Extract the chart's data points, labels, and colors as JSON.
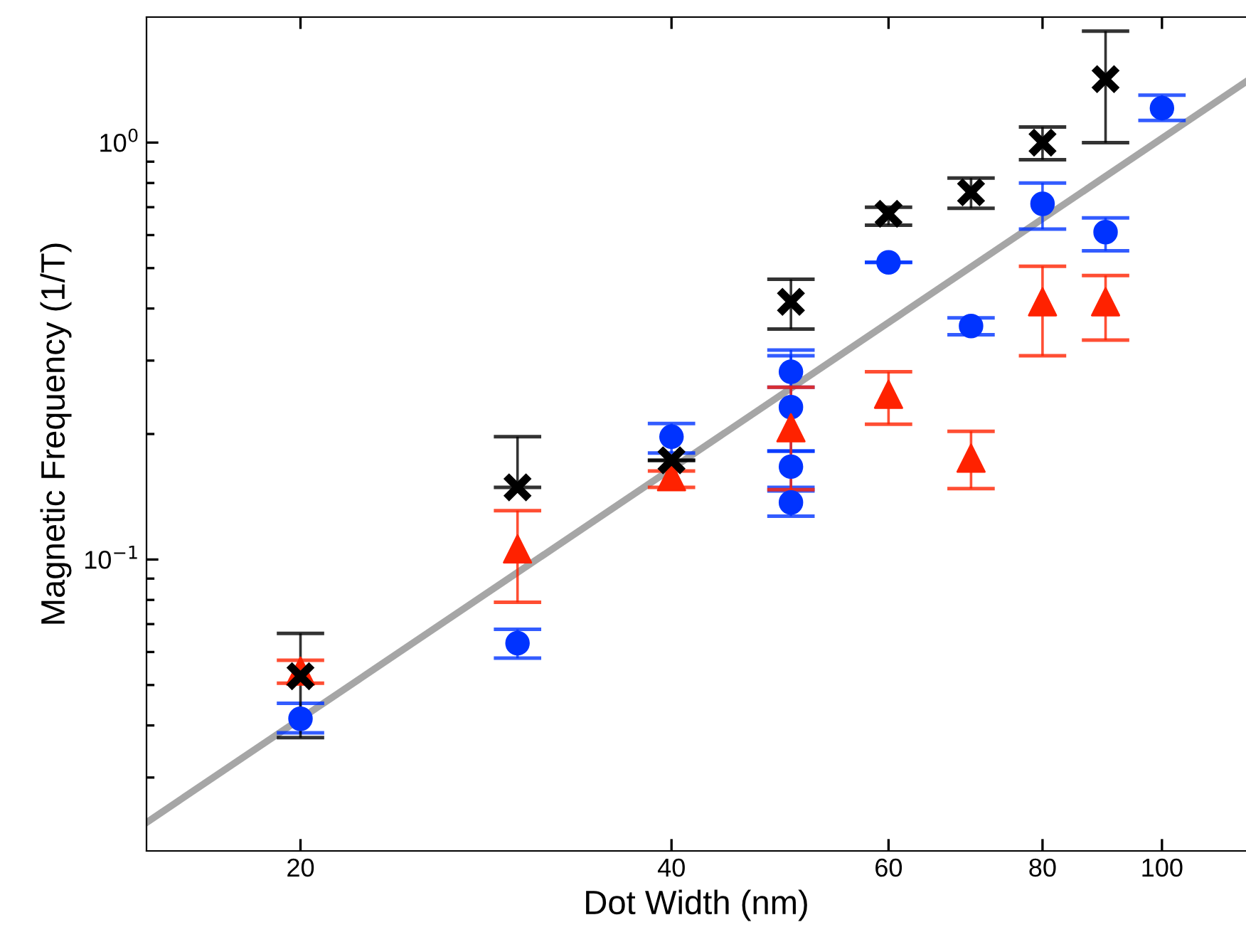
{
  "chart_data": {
    "type": "scatter",
    "xlabel": "Dot Width (nm)",
    "ylabel": "Magnetic Frequency (1/T)",
    "log": "xy",
    "grid": false,
    "xlim": [
      15,
      117
    ],
    "xticks": [
      20,
      40,
      60,
      80,
      100
    ],
    "ylim": [
      0.02,
      2
    ],
    "yticks": [
      {
        "value": 0.03,
        "label": null
      },
      {
        "value": 0.04,
        "label": null
      },
      {
        "value": 0.05,
        "label": null
      },
      {
        "value": 0.06,
        "label": null
      },
      {
        "value": 0.07,
        "label": null
      },
      {
        "value": 0.08,
        "label": null
      },
      {
        "value": 0.09,
        "label": null
      },
      {
        "value": 0.1,
        "label": "10$^{−1}$"
      },
      {
        "value": 0.2,
        "label": null
      },
      {
        "value": 0.3,
        "label": null
      },
      {
        "value": 0.4,
        "label": null
      },
      {
        "value": 0.5,
        "label": null
      },
      {
        "value": 0.6,
        "label": null
      },
      {
        "value": 0.7,
        "label": null
      },
      {
        "value": 0.8,
        "label": null
      },
      {
        "value": 0.9,
        "label": null
      },
      {
        "value": 1,
        "label": "10$^{0}$"
      }
    ],
    "series": [
      {
        "type": "line",
        "color": "#a6a6a6",
        "x": [
          15,
          117
        ],
        "values": [
          0.0234,
          1.4
        ],
        "marker": "none",
        "line_style": "solid"
      },
      {
        "color": "#0033ff",
        "marker": "circle",
        "x": [
          20,
          30,
          40,
          50,
          50,
          50,
          50,
          60,
          70,
          80,
          90,
          100
        ],
        "values": [
          0.0415,
          0.063,
          0.197,
          0.282,
          0.232,
          0.167,
          0.137,
          0.516,
          0.363,
          0.713,
          0.61,
          1.21
        ],
        "errors": [
          [
            0.0384,
            0.0452
          ],
          [
            0.058,
            0.068
          ],
          [
            0.18,
            0.212
          ],
          [
            0.259,
            0.318
          ],
          [
            0.182,
            0.308
          ],
          [
            0.149,
            0.182
          ],
          [
            0.127,
            0.146
          ],
          null,
          [
            0.346,
            0.38
          ],
          [
            0.62,
            0.8
          ],
          [
            0.55,
            0.66
          ],
          [
            1.13,
            1.3
          ]
        ]
      },
      {
        "color": "#ff2200",
        "marker": "triangle",
        "x": [
          20,
          30,
          40,
          50,
          60,
          70,
          80,
          90
        ],
        "values": [
          0.054,
          0.106,
          0.158,
          0.207,
          0.249,
          0.175,
          0.415,
          0.415
        ],
        "errors": [
          [
            0.0505,
            0.0573
          ],
          [
            0.079,
            0.131
          ],
          [
            0.149,
            0.163
          ],
          [
            0.147,
            0.259
          ],
          [
            0.211,
            0.282
          ],
          [
            0.148,
            0.203
          ],
          [
            0.308,
            0.505
          ],
          [
            0.336,
            0.48
          ]
        ]
      },
      {
        "color": "#000000",
        "marker": "cross",
        "x": [
          20,
          30,
          40,
          50,
          60,
          70,
          80,
          90
        ],
        "values": [
          0.0525,
          0.149,
          0.173,
          0.415,
          0.675,
          0.76,
          1.0,
          1.42
        ],
        "errors": [
          [
            0.0374,
            0.0665
          ],
          [
            0.149,
            0.197
          ],
          null,
          [
            0.357,
            0.47
          ],
          [
            0.634,
            0.7
          ],
          [
            0.696,
            0.822
          ],
          [
            0.91,
            1.09
          ],
          [
            1.0,
            1.85
          ]
        ]
      }
    ]
  }
}
